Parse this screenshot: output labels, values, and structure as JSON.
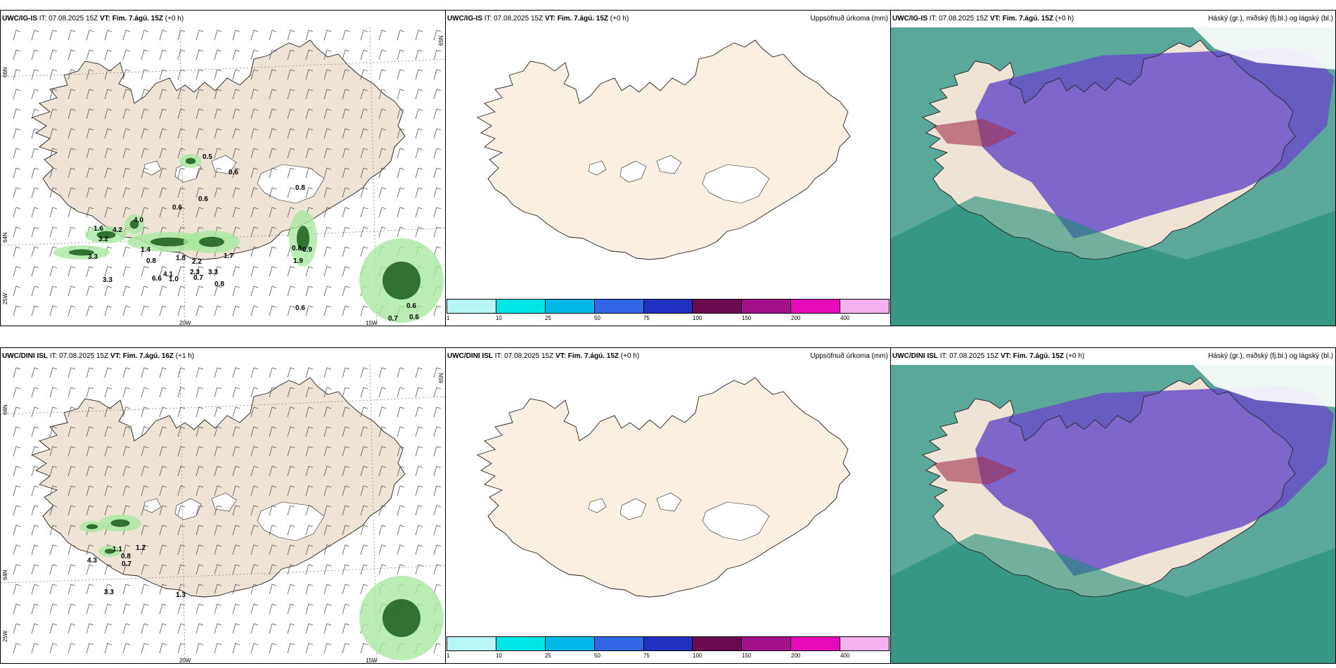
{
  "panels": [
    {
      "model": "UWC/IG-IS",
      "it": "IT: 07.08.2025 15Z",
      "vt": "VT: Fim. 7.ágú. 15Z",
      "lead": "(+0 h)",
      "right": ""
    },
    {
      "model": "UWC/IG-IS",
      "it": "IT: 07.08.2025 15Z",
      "vt": "VT: Fim. 7.ágú. 15Z",
      "lead": "(+0 h)",
      "right": "Uppsöfnuð úrkoma (mm)"
    },
    {
      "model": "UWC/IG-IS",
      "it": "IT: 07.08.2025 15Z",
      "vt": "VT: Fim. 7.ágú. 15Z",
      "lead": "(+0 h)",
      "right": "Háský (gr.), miðský (fj.bl.) og lágský (bl.)"
    },
    {
      "model": "UWC/DINI ISL",
      "it": "IT: 07.08.2025 15Z",
      "vt": "VT: Fim. 7.ágú. 16Z",
      "lead": "(+1 h)",
      "right": ""
    },
    {
      "model": "UWC/DINI ISL",
      "it": "IT: 07.08.2025 15Z",
      "vt": "VT: Fim. 7.ágú. 15Z",
      "lead": "(+0 h)",
      "right": "Uppsöfnuð úrkoma (mm)"
    },
    {
      "model": "UWC/DINI ISL",
      "it": "IT: 07.08.2025 15Z",
      "vt": "VT: Fim. 7.ágú. 15Z",
      "lead": "(+0 h)",
      "right": "Háský (gr.), miðský (fj.bl.) og lágský (bl.)"
    }
  ],
  "graticule": {
    "lat_66": "66N",
    "lat_64": "64N",
    "lat_65": "65N",
    "lon_20": "20W",
    "lon_15": "15W",
    "lon_25": "25W"
  },
  "colorbar": {
    "ticks": [
      "1",
      "10",
      "25",
      "50",
      "75",
      "100",
      "150",
      "200",
      "400"
    ],
    "colors": [
      "#b8f5f5",
      "#00e5e5",
      "#00b7e8",
      "#3366e6",
      "#1f2fbf",
      "#6b0a4f",
      "#a3108a",
      "#e60ab8",
      "#f5b0f0"
    ]
  },
  "precip_labels_top": [
    "0.5",
    "0.6",
    "0.6",
    "0.8",
    "0.6",
    "4.0",
    "1.6",
    "3.2",
    "4.2",
    "3.3",
    "1.4",
    "0.8",
    "1.8",
    "2.2",
    "1.7",
    "0.7",
    "3.3",
    "0.8",
    "3.3",
    "4.1",
    "2.3",
    "6.6",
    "1.0",
    "0.8",
    "0.9",
    "1.9",
    "0.6",
    "0.7",
    "0.6",
    "0.6"
  ],
  "precip_labels_bottom": [
    "1.1",
    "1.2",
    "0.8",
    "0.7",
    "4.3",
    "3.3",
    "1.3"
  ],
  "colors": {
    "land": "#efe3d5",
    "land_mid": "#fbefe1",
    "precip_light": "#a8e8a0",
    "precip_dark": "#1a5c1a",
    "cloud_high": "#6a50c8",
    "cloud_mid": "#1e8c78",
    "cloud_low": "#5aa89a"
  }
}
